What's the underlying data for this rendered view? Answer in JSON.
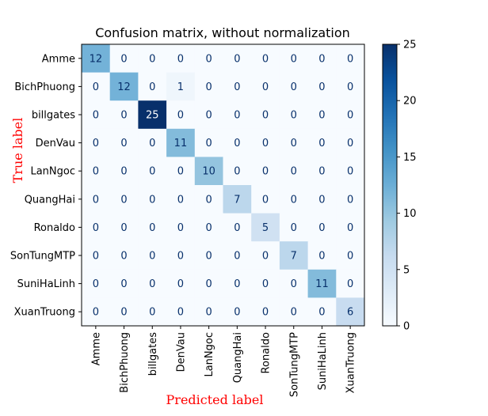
{
  "chart_data": {
    "type": "heatmap",
    "title": "Confusion matrix, without normalization",
    "xlabel": "Predicted label",
    "ylabel": "True label",
    "axis_label_color": "#ff0000",
    "colormap": "Blues",
    "classes": [
      "Amme",
      "BichPhuong",
      "billgates",
      "DenVau",
      "LanNgoc",
      "QuangHai",
      "Ronaldo",
      "SonTungMTP",
      "SuniHaLinh",
      "XuanTruong"
    ],
    "matrix": [
      [
        12,
        0,
        0,
        0,
        0,
        0,
        0,
        0,
        0,
        0
      ],
      [
        0,
        12,
        0,
        1,
        0,
        0,
        0,
        0,
        0,
        0
      ],
      [
        0,
        0,
        25,
        0,
        0,
        0,
        0,
        0,
        0,
        0
      ],
      [
        0,
        0,
        0,
        11,
        0,
        0,
        0,
        0,
        0,
        0
      ],
      [
        0,
        0,
        0,
        0,
        10,
        0,
        0,
        0,
        0,
        0
      ],
      [
        0,
        0,
        0,
        0,
        0,
        7,
        0,
        0,
        0,
        0
      ],
      [
        0,
        0,
        0,
        0,
        0,
        0,
        5,
        0,
        0,
        0
      ],
      [
        0,
        0,
        0,
        0,
        0,
        0,
        0,
        7,
        0,
        0
      ],
      [
        0,
        0,
        0,
        0,
        0,
        0,
        0,
        0,
        11,
        0
      ],
      [
        0,
        0,
        0,
        0,
        0,
        0,
        0,
        0,
        0,
        6
      ]
    ],
    "colorbar": {
      "min": 0,
      "max": 25,
      "ticks": [
        0,
        5,
        10,
        15,
        20,
        25
      ]
    }
  }
}
